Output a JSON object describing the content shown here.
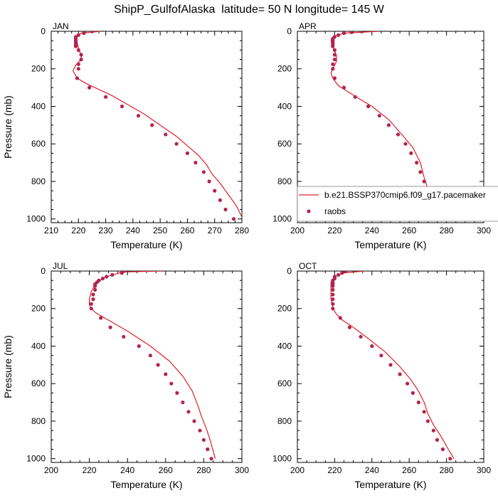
{
  "title": "ShipP_GulfofAlaska  latitude= 50 N longitude= 145 W",
  "colors": {
    "model_line": "#e0202a",
    "obs_marker": "#b3244f",
    "axis": "#000000"
  },
  "legend": {
    "placement": "inside APR panel, lower portion",
    "entries": [
      {
        "label": "b.e21.BSSP370cmip6.f09_g17.pacemaker",
        "kind": "line",
        "color": "#e0202a"
      },
      {
        "label": "raobs",
        "kind": "marker",
        "color": "#b3244f"
      }
    ]
  },
  "chart_data": [
    {
      "type": "line",
      "panel": "JAN",
      "xlabel": "Temperature (K)",
      "ylabel": "Pressure (mb)",
      "xlim": [
        210,
        280
      ],
      "ylim": [
        1020,
        0
      ],
      "y_inverted": true,
      "xticks": [
        210,
        220,
        230,
        240,
        250,
        260,
        270,
        280
      ],
      "yticks": [
        0,
        200,
        400,
        600,
        800,
        1000
      ],
      "series": [
        {
          "kind": "line",
          "points": [
            [
              228,
              0
            ],
            [
              221,
              10
            ],
            [
              219,
              30
            ],
            [
              219.5,
              60
            ],
            [
              220,
              90
            ],
            [
              221,
              130
            ],
            [
              221,
              150
            ],
            [
              219,
              180
            ],
            [
              218,
              210
            ],
            [
              219.5,
              250
            ],
            [
              223,
              280
            ],
            [
              232,
              340
            ],
            [
              238,
              390
            ],
            [
              244,
              440
            ],
            [
              250,
              500
            ],
            [
              256,
              560
            ],
            [
              260,
              610
            ],
            [
              264,
              660
            ],
            [
              267,
              710
            ],
            [
              269,
              760
            ],
            [
              272,
              810
            ],
            [
              275,
              870
            ],
            [
              278,
              930
            ],
            [
              280,
              990
            ],
            [
              281,
              1000
            ]
          ]
        },
        {
          "kind": "scatter",
          "points": [
            [
              225,
              0
            ],
            [
              222,
              10
            ],
            [
              220,
              20
            ],
            [
              219,
              30
            ],
            [
              219,
              40
            ],
            [
              219,
              50
            ],
            [
              219,
              60
            ],
            [
              219,
              70
            ],
            [
              219,
              80
            ],
            [
              220,
              100
            ],
            [
              221,
              125
            ],
            [
              221,
              150
            ],
            [
              220,
              175
            ],
            [
              220,
              200
            ],
            [
              219.5,
              250
            ],
            [
              224,
              300
            ],
            [
              230,
              350
            ],
            [
              236,
              400
            ],
            [
              242,
              450
            ],
            [
              247,
              500
            ],
            [
              252,
              550
            ],
            [
              256,
              600
            ],
            [
              260,
              650
            ],
            [
              263,
              700
            ],
            [
              266,
              750
            ],
            [
              268,
              800
            ],
            [
              270,
              850
            ],
            [
              272,
              900
            ],
            [
              274,
              950
            ],
            [
              277,
              1000
            ]
          ]
        }
      ]
    },
    {
      "type": "line",
      "panel": "APR",
      "xlabel": "Temperature (K)",
      "ylabel": "",
      "xlim": [
        200,
        300
      ],
      "ylim": [
        1020,
        0
      ],
      "y_inverted": true,
      "xticks": [
        200,
        220,
        240,
        260,
        280,
        300
      ],
      "yticks": [
        0,
        200,
        400,
        600,
        800,
        1000
      ],
      "series": [
        {
          "kind": "line",
          "points": [
            [
              244,
              0
            ],
            [
              225,
              10
            ],
            [
              219,
              30
            ],
            [
              218,
              50
            ],
            [
              219,
              80
            ],
            [
              221,
              130
            ],
            [
              221,
              160
            ],
            [
              219,
              200
            ],
            [
              218,
              220
            ],
            [
              219,
              250
            ],
            [
              222,
              290
            ],
            [
              230,
              340
            ],
            [
              240,
              400
            ],
            [
              249,
              470
            ],
            [
              256,
              550
            ],
            [
              262,
              620
            ],
            [
              266,
              700
            ],
            [
              268,
              780
            ],
            [
              270,
              840
            ],
            [
              272,
              900
            ],
            [
              275,
              950
            ],
            [
              279,
              1000
            ]
          ]
        },
        {
          "kind": "scatter",
          "points": [
            [
              234,
              0
            ],
            [
              229,
              5
            ],
            [
              225,
              10
            ],
            [
              222,
              20
            ],
            [
              220,
              30
            ],
            [
              219,
              40
            ],
            [
              219,
              50
            ],
            [
              219,
              60
            ],
            [
              219,
              70
            ],
            [
              219,
              80
            ],
            [
              220,
              100
            ],
            [
              220,
              125
            ],
            [
              220,
              150
            ],
            [
              219,
              175
            ],
            [
              219,
              200
            ],
            [
              220,
              250
            ],
            [
              225,
              300
            ],
            [
              231,
              350
            ],
            [
              238,
              400
            ],
            [
              244,
              450
            ],
            [
              249,
              500
            ],
            [
              254,
              550
            ],
            [
              258,
              600
            ],
            [
              261,
              650
            ],
            [
              264,
              700
            ],
            [
              266,
              750
            ],
            [
              268,
              800
            ],
            [
              270,
              850
            ],
            [
              272,
              900
            ],
            [
              274,
              950
            ],
            [
              277,
              1000
            ]
          ]
        }
      ]
    },
    {
      "type": "line",
      "panel": "JUL",
      "xlabel": "Temperature (K)",
      "ylabel": "Pressure (mb)",
      "xlim": [
        200,
        300
      ],
      "ylim": [
        1020,
        0
      ],
      "y_inverted": true,
      "xticks": [
        200,
        220,
        240,
        260,
        280,
        300
      ],
      "yticks": [
        0,
        200,
        400,
        600,
        800,
        1000
      ],
      "series": [
        {
          "kind": "line",
          "points": [
            [
              258,
              0
            ],
            [
              238,
              5
            ],
            [
              232,
              20
            ],
            [
              227,
              40
            ],
            [
              223,
              70
            ],
            [
              221,
              110
            ],
            [
              220,
              150
            ],
            [
              220,
              180
            ],
            [
              221,
              200
            ],
            [
              223,
              220
            ],
            [
              228,
              250
            ],
            [
              240,
              320
            ],
            [
              252,
              400
            ],
            [
              262,
              480
            ],
            [
              269,
              560
            ],
            [
              274,
              640
            ],
            [
              277,
              720
            ],
            [
              279,
              780
            ],
            [
              281,
              830
            ],
            [
              283,
              890
            ],
            [
              285,
              960
            ],
            [
              286,
              1000
            ]
          ]
        },
        {
          "kind": "scatter",
          "points": [
            [
              238,
              0
            ],
            [
              237,
              10
            ],
            [
              232,
              20
            ],
            [
              229,
              30
            ],
            [
              227,
              40
            ],
            [
              225,
              50
            ],
            [
              224,
              60
            ],
            [
              223,
              70
            ],
            [
              223,
              80
            ],
            [
              223,
              100
            ],
            [
              222,
              125
            ],
            [
              222,
              150
            ],
            [
              221,
              175
            ],
            [
              221,
              200
            ],
            [
              226,
              250
            ],
            [
              231,
              300
            ],
            [
              238,
              350
            ],
            [
              246,
              400
            ],
            [
              252,
              450
            ],
            [
              256,
              500
            ],
            [
              260,
              550
            ],
            [
              263,
              600
            ],
            [
              266,
              650
            ],
            [
              269,
              700
            ],
            [
              272,
              750
            ],
            [
              275,
              800
            ],
            [
              278,
              850
            ],
            [
              280,
              900
            ],
            [
              282,
              950
            ],
            [
              284,
              1000
            ]
          ]
        }
      ]
    },
    {
      "type": "line",
      "panel": "OCT",
      "xlabel": "Temperature (K)",
      "ylabel": "",
      "xlim": [
        200,
        300
      ],
      "ylim": [
        1020,
        0
      ],
      "y_inverted": true,
      "xticks": [
        200,
        220,
        240,
        260,
        280,
        300
      ],
      "yticks": [
        0,
        200,
        400,
        600,
        800,
        1000
      ],
      "series": [
        {
          "kind": "line",
          "points": [
            [
              236,
              0
            ],
            [
              225,
              10
            ],
            [
              220,
              30
            ],
            [
              218,
              60
            ],
            [
              218,
              100
            ],
            [
              218,
              150
            ],
            [
              219,
              180
            ],
            [
              219,
              200
            ],
            [
              221,
              230
            ],
            [
              224,
              260
            ],
            [
              230,
              300
            ],
            [
              238,
              360
            ],
            [
              247,
              430
            ],
            [
              255,
              510
            ],
            [
              261,
              580
            ],
            [
              265,
              640
            ],
            [
              268,
              700
            ],
            [
              270,
              760
            ],
            [
              273,
              820
            ],
            [
              277,
              880
            ],
            [
              281,
              950
            ],
            [
              284,
              1000
            ]
          ]
        },
        {
          "kind": "scatter",
          "points": [
            [
              226,
              0
            ],
            [
              224,
              10
            ],
            [
              222,
              20
            ],
            [
              220,
              30
            ],
            [
              220,
              40
            ],
            [
              219,
              50
            ],
            [
              219,
              60
            ],
            [
              219,
              70
            ],
            [
              219,
              80
            ],
            [
              219,
              100
            ],
            [
              219,
              125
            ],
            [
              219,
              150
            ],
            [
              219,
              175
            ],
            [
              219,
              200
            ],
            [
              223,
              250
            ],
            [
              228,
              300
            ],
            [
              234,
              350
            ],
            [
              240,
              400
            ],
            [
              245,
              450
            ],
            [
              250,
              500
            ],
            [
              255,
              550
            ],
            [
              259,
              600
            ],
            [
              262,
              650
            ],
            [
              265,
              700
            ],
            [
              268,
              750
            ],
            [
              270,
              800
            ],
            [
              273,
              850
            ],
            [
              275,
              900
            ],
            [
              278,
              950
            ],
            [
              282,
              1000
            ]
          ]
        }
      ]
    }
  ]
}
